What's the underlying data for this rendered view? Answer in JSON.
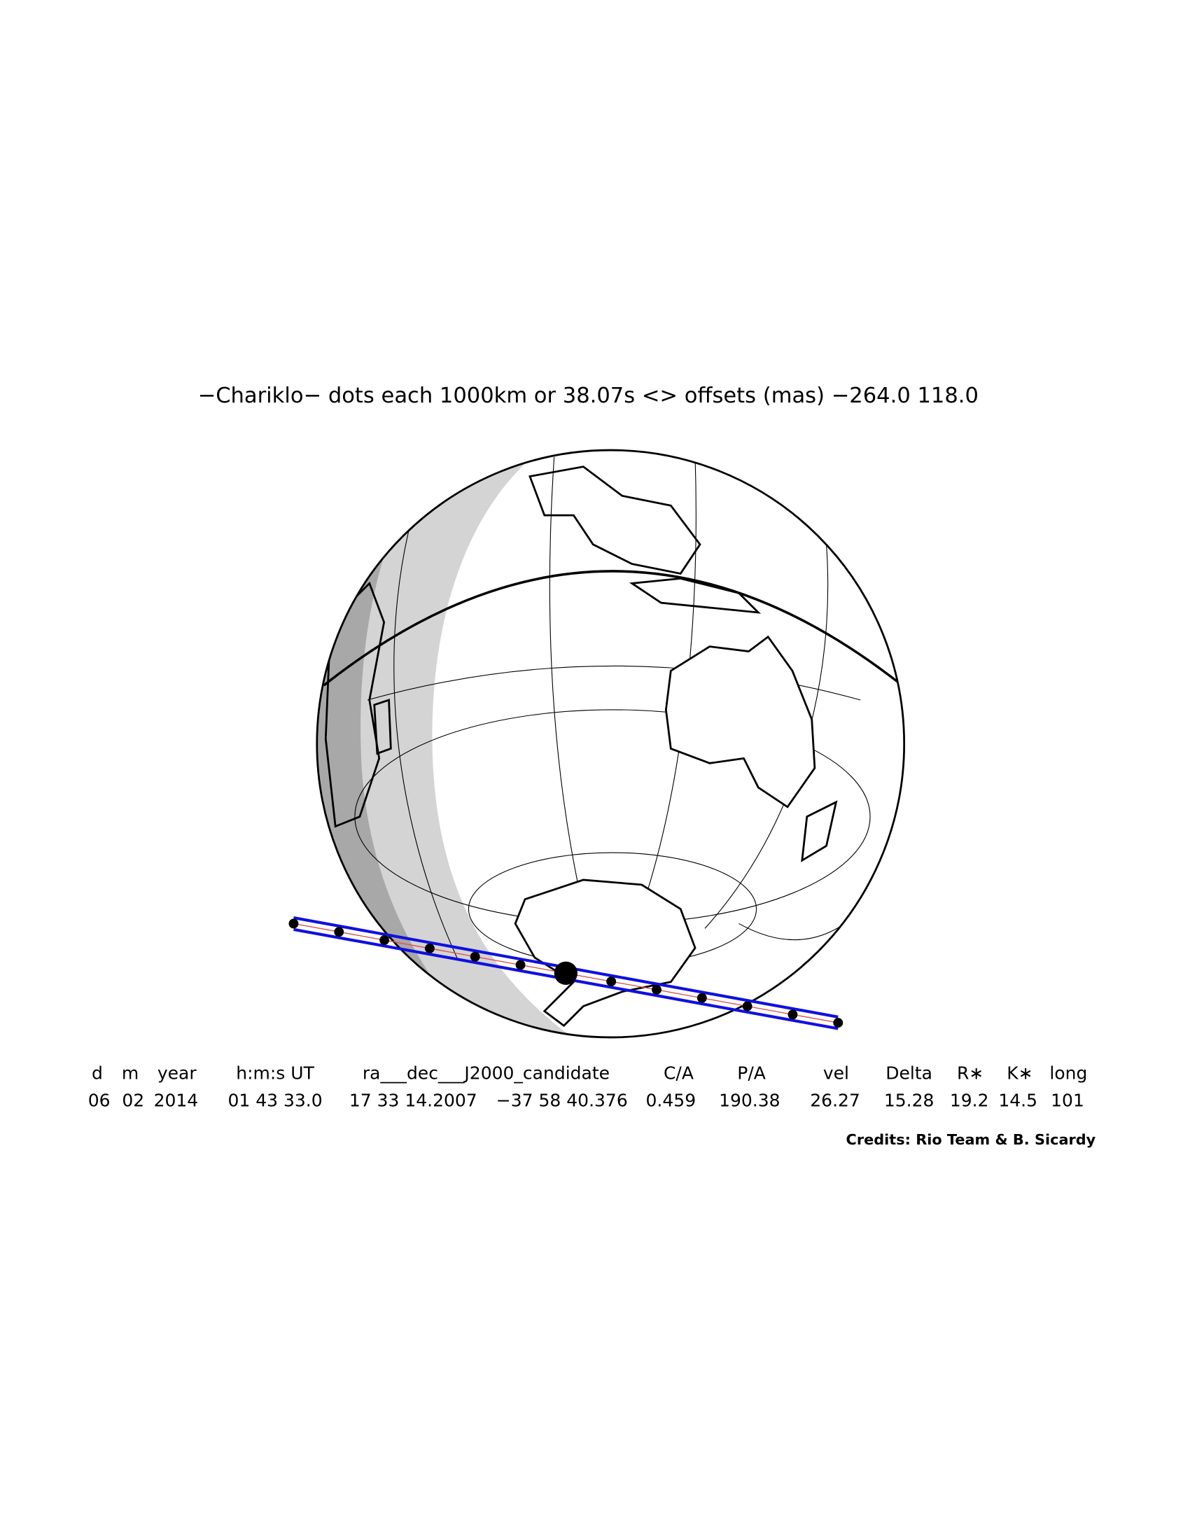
{
  "header": {
    "title": "−Chariklo− dots each 1000km or 38.07s <> offsets (mas) −264.0  118.0"
  },
  "table": {
    "columns": [
      "d",
      "m",
      "year",
      "h:m:s UT",
      "ra___dec___J2000_candidate",
      "C/A",
      "P/A",
      "vel",
      "Delta",
      "R∗",
      "K∗",
      "long"
    ],
    "row": [
      "06",
      "02",
      "2014",
      "01 43 33.0",
      "17 33 14.2007",
      "−37 58 40.376",
      "0.459",
      "190.38",
      "26.27",
      "15.28",
      "19.2",
      "14.5",
      "101"
    ]
  },
  "footer": {
    "credits": "Credits: Rio Team & B. Sicardy"
  }
}
